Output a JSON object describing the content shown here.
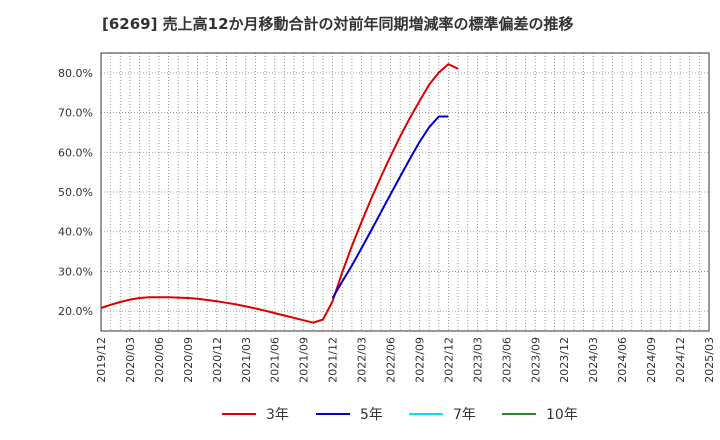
{
  "chart_data": {
    "type": "line",
    "title": "[6269]  売上高12か月移動合計の対前年同期増減率の標準偏差の推移",
    "xlabel": "",
    "ylabel": "",
    "ylim": [
      15.0,
      85.0
    ],
    "yticks": [
      20,
      30,
      40,
      50,
      60,
      70,
      80
    ],
    "ytick_labels": [
      "20.0%",
      "30.0%",
      "40.0%",
      "50.0%",
      "60.0%",
      "70.0%",
      "80.0%"
    ],
    "xlim": [
      "2019-12",
      "2025-03"
    ],
    "xtick_labels": [
      "2019/12",
      "2020/03",
      "2020/06",
      "2020/09",
      "2020/12",
      "2021/03",
      "2021/06",
      "2021/09",
      "2021/12",
      "2022/03",
      "2022/06",
      "2022/09",
      "2022/12",
      "2023/03",
      "2023/06",
      "2023/09",
      "2023/12",
      "2024/03",
      "2024/06",
      "2024/09",
      "2024/12",
      "2025/03"
    ],
    "grid": true,
    "legend_position": "bottom",
    "series": [
      {
        "name": "3年",
        "color": "#dd0000",
        "points": [
          [
            "2019-12",
            20.8
          ],
          [
            "2020-01",
            21.6
          ],
          [
            "2020-02",
            22.3
          ],
          [
            "2020-03",
            22.9
          ],
          [
            "2020-04",
            23.3
          ],
          [
            "2020-05",
            23.5
          ],
          [
            "2020-06",
            23.5
          ],
          [
            "2020-07",
            23.5
          ],
          [
            "2020-08",
            23.4
          ],
          [
            "2020-09",
            23.3
          ],
          [
            "2020-10",
            23.1
          ],
          [
            "2020-11",
            22.8
          ],
          [
            "2020-12",
            22.5
          ],
          [
            "2021-01",
            22.1
          ],
          [
            "2021-02",
            21.7
          ],
          [
            "2021-03",
            21.2
          ],
          [
            "2021-04",
            20.7
          ],
          [
            "2021-05",
            20.1
          ],
          [
            "2021-06",
            19.5
          ],
          [
            "2021-07",
            18.9
          ],
          [
            "2021-08",
            18.3
          ],
          [
            "2021-09",
            17.7
          ],
          [
            "2021-10",
            17.1
          ],
          [
            "2021-11",
            17.9
          ],
          [
            "2021-12",
            22.5
          ],
          [
            "2022-01",
            29.8
          ],
          [
            "2022-02",
            36.4
          ],
          [
            "2022-03",
            42.5
          ],
          [
            "2022-04",
            48.3
          ],
          [
            "2022-05",
            53.8
          ],
          [
            "2022-06",
            59.0
          ],
          [
            "2022-07",
            64.0
          ],
          [
            "2022-08",
            68.6
          ],
          [
            "2022-09",
            72.9
          ],
          [
            "2022-10",
            77.0
          ],
          [
            "2022-11",
            80.1
          ],
          [
            "2022-12",
            82.2
          ],
          [
            "2023-01",
            81.0
          ]
        ]
      },
      {
        "name": "5年",
        "color": "#0000cc",
        "points": [
          [
            "2021-12",
            23.3
          ],
          [
            "2022-01",
            27.5
          ],
          [
            "2022-02",
            31.5
          ],
          [
            "2022-03",
            35.9
          ],
          [
            "2022-04",
            40.3
          ],
          [
            "2022-05",
            44.9
          ],
          [
            "2022-06",
            49.4
          ],
          [
            "2022-07",
            53.9
          ],
          [
            "2022-08",
            58.3
          ],
          [
            "2022-09",
            62.6
          ],
          [
            "2022-10",
            66.3
          ],
          [
            "2022-11",
            69.0
          ],
          [
            "2022-12",
            69.0
          ]
        ]
      },
      {
        "name": "7年",
        "color": "#00e5ee",
        "points": []
      },
      {
        "name": "10年",
        "color": "#228b22",
        "points": []
      }
    ]
  }
}
